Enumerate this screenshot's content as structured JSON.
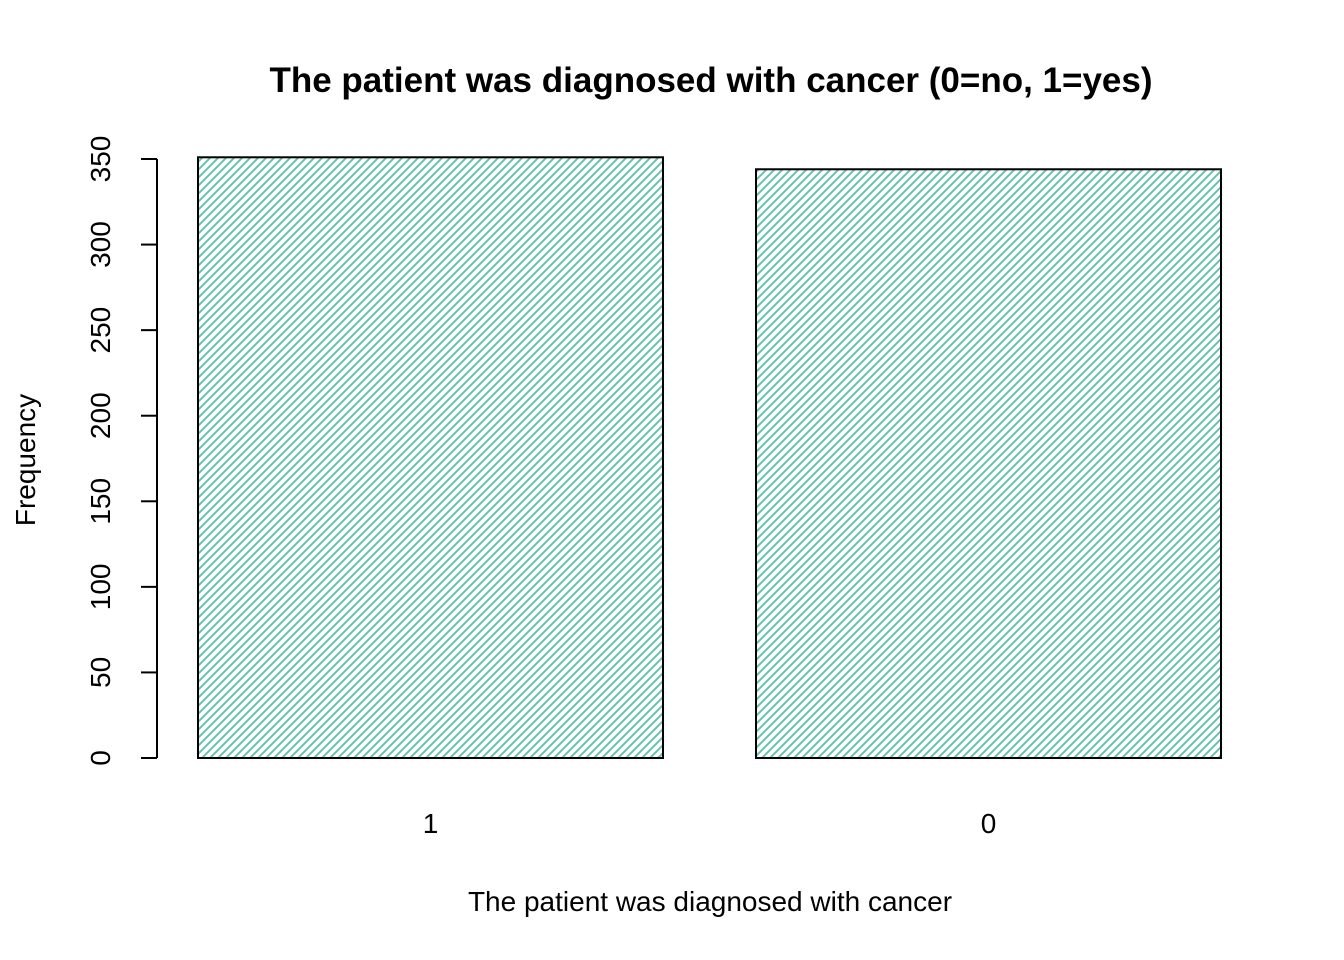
{
  "chart_data": {
    "type": "bar",
    "title": "The patient was diagnosed with cancer (0=no, 1=yes)",
    "xlabel": "The patient was diagnosed with cancer",
    "ylabel": "Frequency",
    "categories": [
      "1",
      "0"
    ],
    "values": [
      351,
      344
    ],
    "ylim": [
      0,
      350
    ],
    "yticks": [
      "0",
      "50",
      "100",
      "150",
      "200",
      "250",
      "300",
      "350"
    ],
    "grid": false,
    "legend": "none",
    "bar_fill": "hatched",
    "hatch_color": "#66C2B0",
    "outline_color": "#000000"
  }
}
